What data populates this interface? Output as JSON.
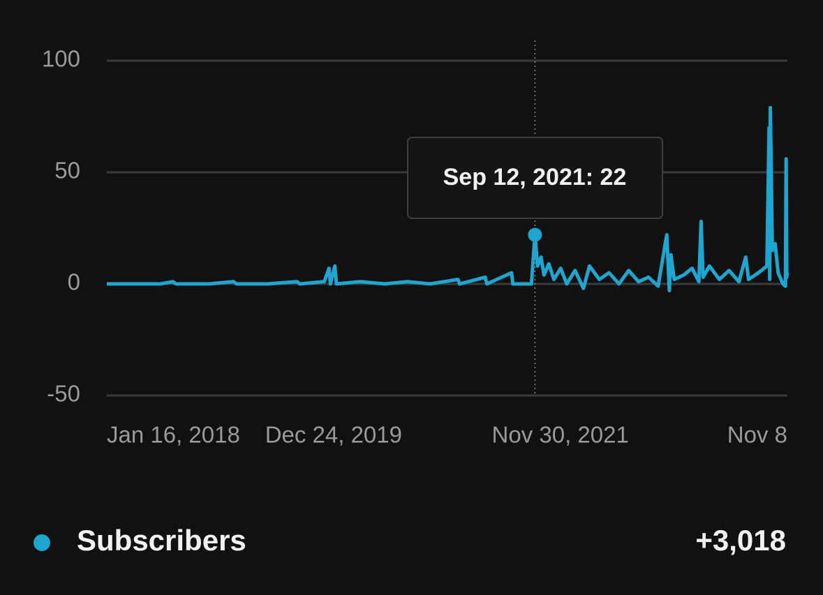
{
  "chart_data": {
    "type": "line",
    "xlim": [
      "2018-01-16",
      "2023-11-08"
    ],
    "xticks": [
      {
        "value": "2018-01-16",
        "label": "Jan 16, 2018"
      },
      {
        "value": "2019-12-24",
        "label": "Dec 24, 2019"
      },
      {
        "value": "2021-11-30",
        "label": "Nov 30, 2021"
      },
      {
        "value": "2023-11-08",
        "label": "Nov 8"
      }
    ],
    "ylim": [
      -50,
      100
    ],
    "yticks": [
      -50,
      0,
      50,
      100
    ],
    "grid": true,
    "x": [
      "2018-01-16",
      "2018-07-01",
      "2018-08-10",
      "2018-08-20",
      "2018-12-01",
      "2019-02-15",
      "2019-02-25",
      "2019-06-01",
      "2019-09-01",
      "2019-09-10",
      "2019-11-25",
      "2019-12-10",
      "2019-12-14",
      "2019-12-28",
      "2020-01-02",
      "2020-03-15",
      "2020-06-01",
      "2020-08-10",
      "2020-10-20",
      "2021-01-15",
      "2021-01-20",
      "2021-04-10",
      "2021-04-15",
      "2021-07-01",
      "2021-07-05",
      "2021-09-01",
      "2021-09-12",
      "2021-09-20",
      "2021-10-01",
      "2021-10-10",
      "2021-10-25",
      "2021-11-10",
      "2021-12-01",
      "2021-12-20",
      "2022-01-15",
      "2022-02-10",
      "2022-03-01",
      "2022-04-01",
      "2022-05-01",
      "2022-06-01",
      "2022-07-01",
      "2022-08-01",
      "2022-09-01",
      "2022-10-01",
      "2022-10-28",
      "2022-11-05",
      "2022-11-10",
      "2022-11-20",
      "2022-12-20",
      "2023-01-15",
      "2023-02-05",
      "2023-02-12",
      "2023-02-18",
      "2023-03-10",
      "2023-04-10",
      "2023-05-10",
      "2023-06-10",
      "2023-07-01",
      "2023-07-10",
      "2023-08-10",
      "2023-09-05",
      "2023-09-12",
      "2023-09-14",
      "2023-09-16",
      "2023-09-22",
      "2023-10-01",
      "2023-10-10",
      "2023-10-25",
      "2023-11-02",
      "2023-11-04",
      "2023-11-06",
      "2023-11-08"
    ],
    "series": [
      {
        "name": "Subscribers",
        "color": "#1ea6d1",
        "values": [
          0,
          0,
          1,
          0,
          0,
          1,
          0,
          0,
          1,
          0,
          1,
          7,
          0,
          8,
          0,
          1,
          0,
          1,
          0,
          2,
          0,
          3,
          0,
          5,
          0,
          0,
          22,
          8,
          12,
          4,
          9,
          2,
          7,
          0,
          6,
          -2,
          8,
          2,
          5,
          0,
          6,
          1,
          3,
          -1,
          22,
          -3,
          13,
          2,
          4,
          7,
          1,
          28,
          3,
          8,
          2,
          6,
          1,
          12,
          2,
          5,
          8,
          70,
          2,
          79,
          15,
          18,
          5,
          0,
          -1,
          56,
          3,
          5
        ]
      }
    ],
    "tooltip": {
      "index": 26,
      "text": "Sep 12, 2021: 22"
    },
    "total": {
      "value": 3018,
      "label": "+3,018"
    }
  }
}
